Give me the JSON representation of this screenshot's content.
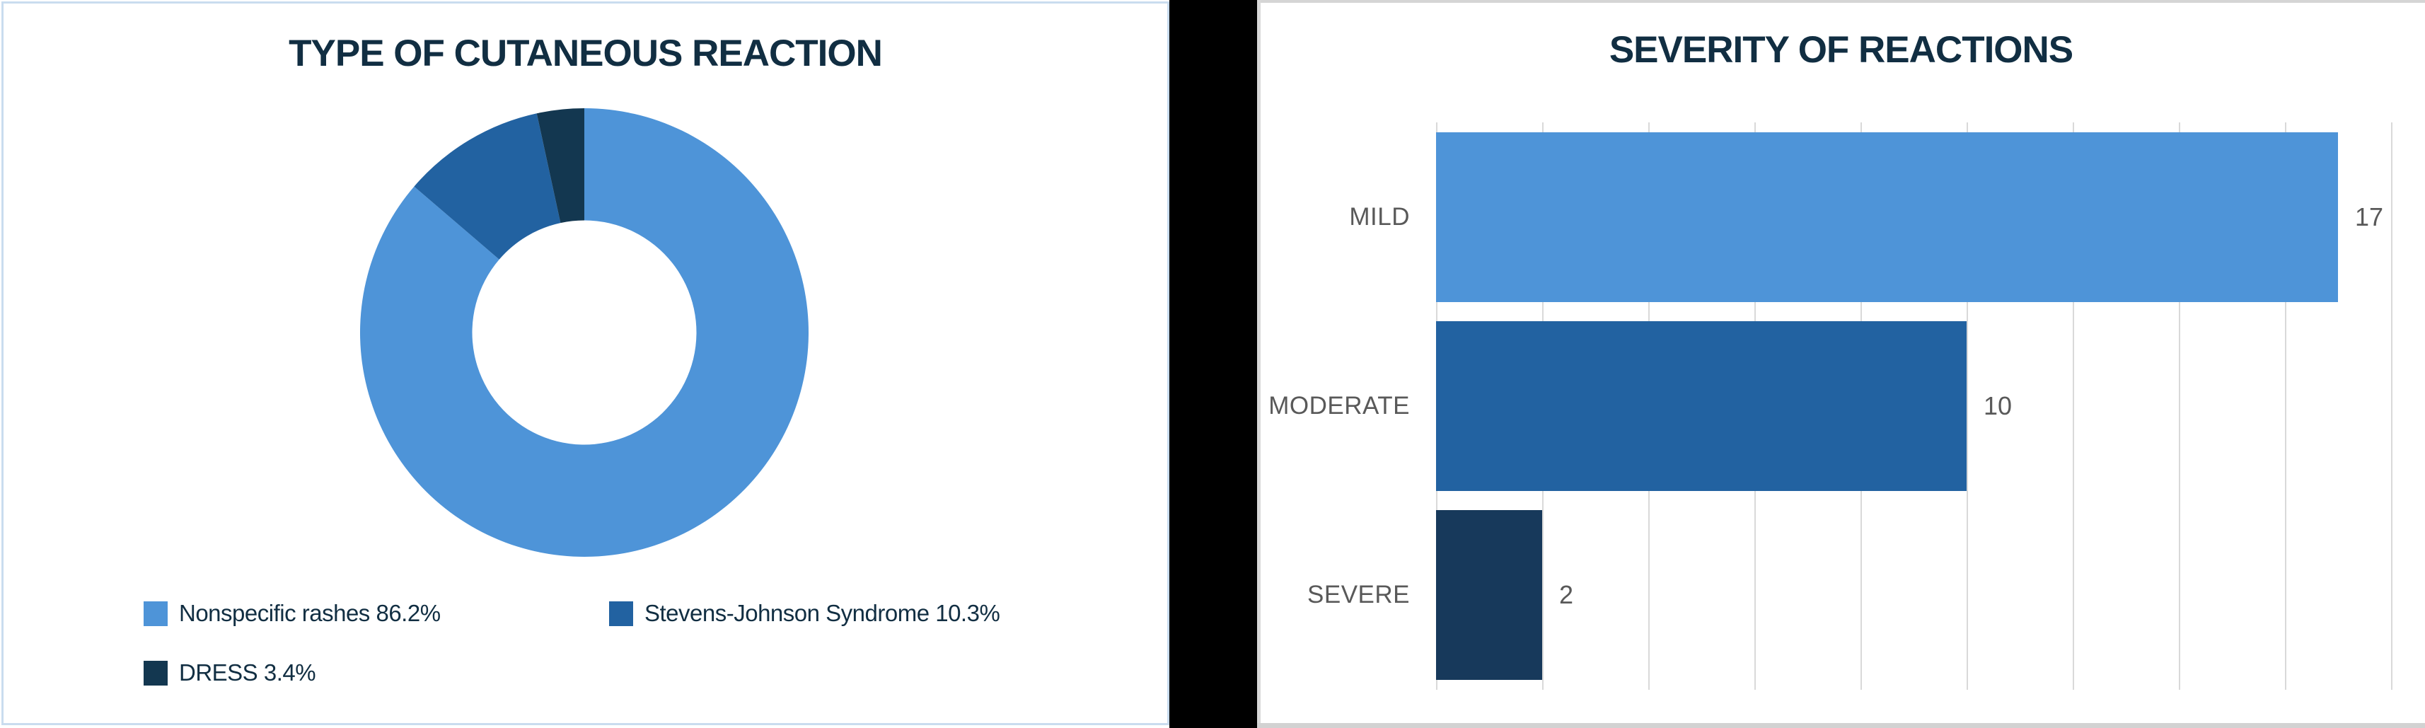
{
  "colors": {
    "accent_light_blue": "#4E94D8",
    "accent_medium_blue": "#2262A1",
    "accent_dark_navy": "#163A56",
    "title_text": "#112E42",
    "axis_label_gray": "#595959",
    "gridline_gray": "#D9D9D9",
    "left_panel_border": "#C9DCEF",
    "divider_black": "#000000"
  },
  "chart_data": [
    {
      "type": "pie",
      "subtype": "donut",
      "title": "TYPE OF CUTANEOUS REACTION",
      "labels": [
        "Nonspecific rashes",
        "Stevens-Johnson Syndrome",
        "DRESS"
      ],
      "values": [
        86.2,
        10.3,
        3.4
      ],
      "unit": "%",
      "slice_colors": [
        "#4E94D8",
        "#2262A1",
        "#133750"
      ],
      "start_angle_deg": -90,
      "direction": "clockwise",
      "hole_ratio": 0.5,
      "legend_position": "bottom",
      "legend": {
        "items": [
          {
            "label": "Nonspecific rashes 86.2%",
            "color": "#4E94D8"
          },
          {
            "label": "Stevens-Johnson Syndrome 10.3%",
            "color": "#2262A1"
          },
          {
            "label": "DRESS 3.4%",
            "color": "#133750"
          }
        ]
      }
    },
    {
      "type": "bar",
      "orientation": "horizontal",
      "title": "SEVERITY OF REACTIONS",
      "categories": [
        "MILD",
        "MODERATE",
        "SEVERE"
      ],
      "values": [
        17,
        10,
        2
      ],
      "data_labels": [
        "17",
        "10",
        "2"
      ],
      "bar_colors": [
        "#4E94D8",
        "#2262A1",
        "#17395B"
      ],
      "xlim": [
        0,
        18
      ],
      "gridline_step": 2,
      "grid": true,
      "legend_position": "none",
      "xlabel": "",
      "ylabel": ""
    }
  ]
}
